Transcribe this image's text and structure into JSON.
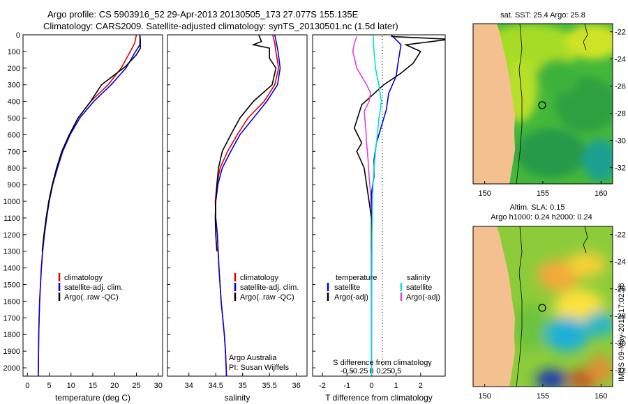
{
  "header": {
    "line1": "Argo profile: CS 5903916_52 29-Apr-2013 20130505_173 27.077S 155.135E",
    "line2": "Climatology: CARS2009. Satellite-adjusted climatology: synTS_20130501.nc (1.5d later)"
  },
  "footer_credit": "Argo Australia",
  "footer_pi": "PI: Susan Wijffels",
  "watermark": "IMOS 09-May-2013 17:02:36",
  "colors": {
    "climatology": "#e00000",
    "satellite": "#0000e0",
    "argo": "#000000",
    "argo_adj_s": "#e040e0",
    "sat_s": "#00e0e0",
    "land": "#f5c090"
  },
  "chart_data": [
    {
      "type": "line",
      "title": "",
      "xlabel": "temperature (deg C)",
      "ylabel": "",
      "xlim": [
        -1,
        31
      ],
      "ylim": [
        2050,
        0
      ],
      "xticks": [
        0,
        5,
        10,
        15,
        20,
        25,
        30
      ],
      "yticks": [
        0,
        100,
        200,
        300,
        400,
        500,
        600,
        700,
        800,
        900,
        1000,
        1100,
        1200,
        1300,
        1400,
        1500,
        1600,
        1700,
        1800,
        1900,
        2000
      ],
      "legend": [
        "climatology",
        "satellite-adj. clim.",
        "Argo(..raw -QC)"
      ],
      "series": [
        {
          "name": "climatology",
          "color": "#e00000",
          "x": [
            25.0,
            24.6,
            23.6,
            21.5,
            18.5,
            14.5,
            11.6,
            9.6,
            8.0,
            6.8,
            5.8,
            5.0,
            4.4,
            3.9,
            3.5,
            3.2,
            3.0,
            2.8,
            2.7,
            2.6,
            2.5
          ],
          "y": [
            0,
            50,
            100,
            200,
            300,
            400,
            500,
            600,
            700,
            800,
            900,
            1000,
            1100,
            1200,
            1300,
            1400,
            1500,
            1600,
            1700,
            1800,
            2050
          ]
        },
        {
          "name": "satellite-adj. clim.",
          "color": "#0000e0",
          "x": [
            25.8,
            25.8,
            24.8,
            22.6,
            19.2,
            15.2,
            12.0,
            9.8,
            8.1,
            6.9,
            5.8,
            5.0,
            4.4,
            3.9,
            3.5,
            3.2,
            3.0,
            2.8,
            2.7,
            2.6,
            2.5
          ],
          "y": [
            0,
            60,
            100,
            200,
            300,
            400,
            500,
            600,
            700,
            800,
            900,
            1000,
            1100,
            1200,
            1300,
            1400,
            1500,
            1600,
            1700,
            1800,
            2050
          ]
        },
        {
          "name": "Argo(..raw -QC)",
          "color": "#000000",
          "x": [
            25.8,
            25.9,
            25.9,
            25.0,
            22.5,
            17.0,
            14.5,
            11.6,
            9.6,
            7.9,
            6.7,
            5.7,
            4.9,
            4.3,
            3.8,
            3.4
          ],
          "y": [
            5,
            30,
            80,
            120,
            190,
            300,
            400,
            500,
            600,
            700,
            800,
            900,
            1000,
            1100,
            1200,
            1300
          ]
        }
      ]
    },
    {
      "type": "line",
      "title": "",
      "xlabel": "salinity",
      "ylabel": "",
      "xlim": [
        33.6,
        36.2
      ],
      "ylim": [
        2050,
        0
      ],
      "xticks": [
        34,
        34.5,
        35,
        35.5,
        36
      ],
      "legend": [
        "climatology",
        "satellite-adj. clim.",
        "Argo(..raw -QC)"
      ],
      "series": [
        {
          "name": "climatology",
          "color": "#e00000",
          "x": [
            35.56,
            35.6,
            35.62,
            35.67,
            35.6,
            35.4,
            35.1,
            34.9,
            34.72,
            34.58,
            34.52,
            34.49,
            34.5,
            34.53,
            34.56,
            34.6,
            34.63,
            34.66,
            34.68,
            34.7
          ],
          "y": [
            0,
            50,
            100,
            200,
            300,
            400,
            500,
            600,
            700,
            800,
            900,
            1000,
            1100,
            1200,
            1400,
            1600,
            1700,
            1800,
            1900,
            2050
          ]
        },
        {
          "name": "satellite-adj. clim.",
          "color": "#0000e0",
          "x": [
            35.6,
            35.63,
            35.66,
            35.7,
            35.65,
            35.45,
            35.2,
            34.95,
            34.78,
            34.62,
            34.54,
            34.5,
            34.5,
            34.53,
            34.56,
            34.6,
            34.63,
            34.66,
            34.68,
            34.7
          ],
          "y": [
            0,
            50,
            100,
            200,
            300,
            400,
            500,
            600,
            700,
            800,
            900,
            1000,
            1100,
            1200,
            1400,
            1600,
            1700,
            1800,
            1900,
            2050
          ]
        },
        {
          "name": "Argo(..raw -QC)",
          "color": "#000000",
          "x": [
            35.3,
            35.35,
            35.2,
            35.5,
            35.5,
            35.62,
            35.55,
            35.2,
            34.95,
            34.78,
            34.62,
            34.55,
            34.52,
            34.5,
            34.49,
            34.5,
            34.52
          ],
          "y": [
            0,
            40,
            60,
            80,
            140,
            200,
            300,
            400,
            500,
            600,
            700,
            800,
            900,
            1000,
            1100,
            1200,
            1300
          ]
        }
      ]
    },
    {
      "type": "line",
      "title": "",
      "xlabel": "T difference from climatology",
      "xlabel_top": "S difference from climatology",
      "ylabel": "",
      "xlim": [
        -2.4,
        3.0
      ],
      "ylim": [
        2050,
        0
      ],
      "xticks": [
        -2,
        -1,
        0,
        1,
        2
      ],
      "xticks_top": [
        -0.5,
        -0.25,
        0,
        0.25,
        0.5
      ],
      "legend": [
        "temperature",
        "satellite",
        "Argo(-adj)",
        "salinity",
        "satellite",
        "Argo(-adj)"
      ],
      "series": [
        {
          "name": "T satellite",
          "color": "#0000e0",
          "x": [
            0.8,
            1.2,
            1.1,
            1.0,
            0.7,
            0.6,
            0.4,
            0.2,
            0.1,
            0.1,
            0.0,
            0.0,
            0.0,
            0.0
          ],
          "y": [
            0,
            60,
            150,
            250,
            350,
            450,
            550,
            650,
            750,
            850,
            950,
            1200,
            1600,
            2050
          ]
        },
        {
          "name": "T Argo(-adj)",
          "color": "#000000",
          "x": [
            0.8,
            3.0,
            3.0,
            1.4,
            2.0,
            1.7,
            1.2,
            0.5,
            -0.4,
            -0.7,
            -0.4,
            -0.6,
            -0.3,
            -0.2,
            -0.1,
            0.0,
            0.0,
            0.0
          ],
          "y": [
            10,
            25,
            30,
            60,
            100,
            170,
            230,
            300,
            420,
            560,
            650,
            700,
            800,
            900,
            1000,
            1100,
            1200,
            1300
          ]
        },
        {
          "name": "S satellite",
          "color": "#00e0e0",
          "x": [
            0.03,
            0.05,
            0.08,
            0.15,
            0.2,
            0.18,
            0.15,
            0.12,
            0.08,
            0.05,
            0.03,
            0.02,
            0.01,
            0.0
          ],
          "y": [
            0,
            100,
            200,
            300,
            400,
            450,
            500,
            600,
            700,
            800,
            900,
            1000,
            1200,
            2050
          ]
        },
        {
          "name": "S Argo(-adj)",
          "color": "#e040e0",
          "x": [
            -0.3,
            -0.35,
            -0.38,
            -0.3,
            -0.1,
            -0.02,
            -0.05,
            -0.15,
            -0.12,
            -0.1,
            -0.07,
            -0.05,
            -0.02,
            -0.01
          ],
          "y": [
            10,
            50,
            100,
            200,
            300,
            350,
            400,
            460,
            550,
            650,
            750,
            850,
            950,
            1050
          ]
        }
      ]
    },
    {
      "type": "heatmap",
      "title": "sat. SST: 25.4  Argo: 25.8",
      "xlim": [
        149,
        161
      ],
      "ylim": [
        -33.2,
        -21.4
      ],
      "xticks": [
        150,
        155,
        160
      ],
      "yticks": [
        -22,
        -24,
        -26,
        -28,
        -30,
        -32
      ],
      "marker": {
        "lon": 155.135,
        "lat": -27.077
      }
    },
    {
      "type": "heatmap",
      "title": "Altim. SLA: 0.15",
      "subtitle": "Argo h1000: 0.24 h2000: 0.24",
      "xlim": [
        149,
        161
      ],
      "ylim": [
        -33.2,
        -21.4
      ],
      "xticks": [
        150,
        155,
        160
      ],
      "yticks": [
        -22,
        -24,
        -26,
        -28,
        -30,
        -32
      ],
      "marker": {
        "lon": 155.135,
        "lat": -27.077
      }
    }
  ]
}
